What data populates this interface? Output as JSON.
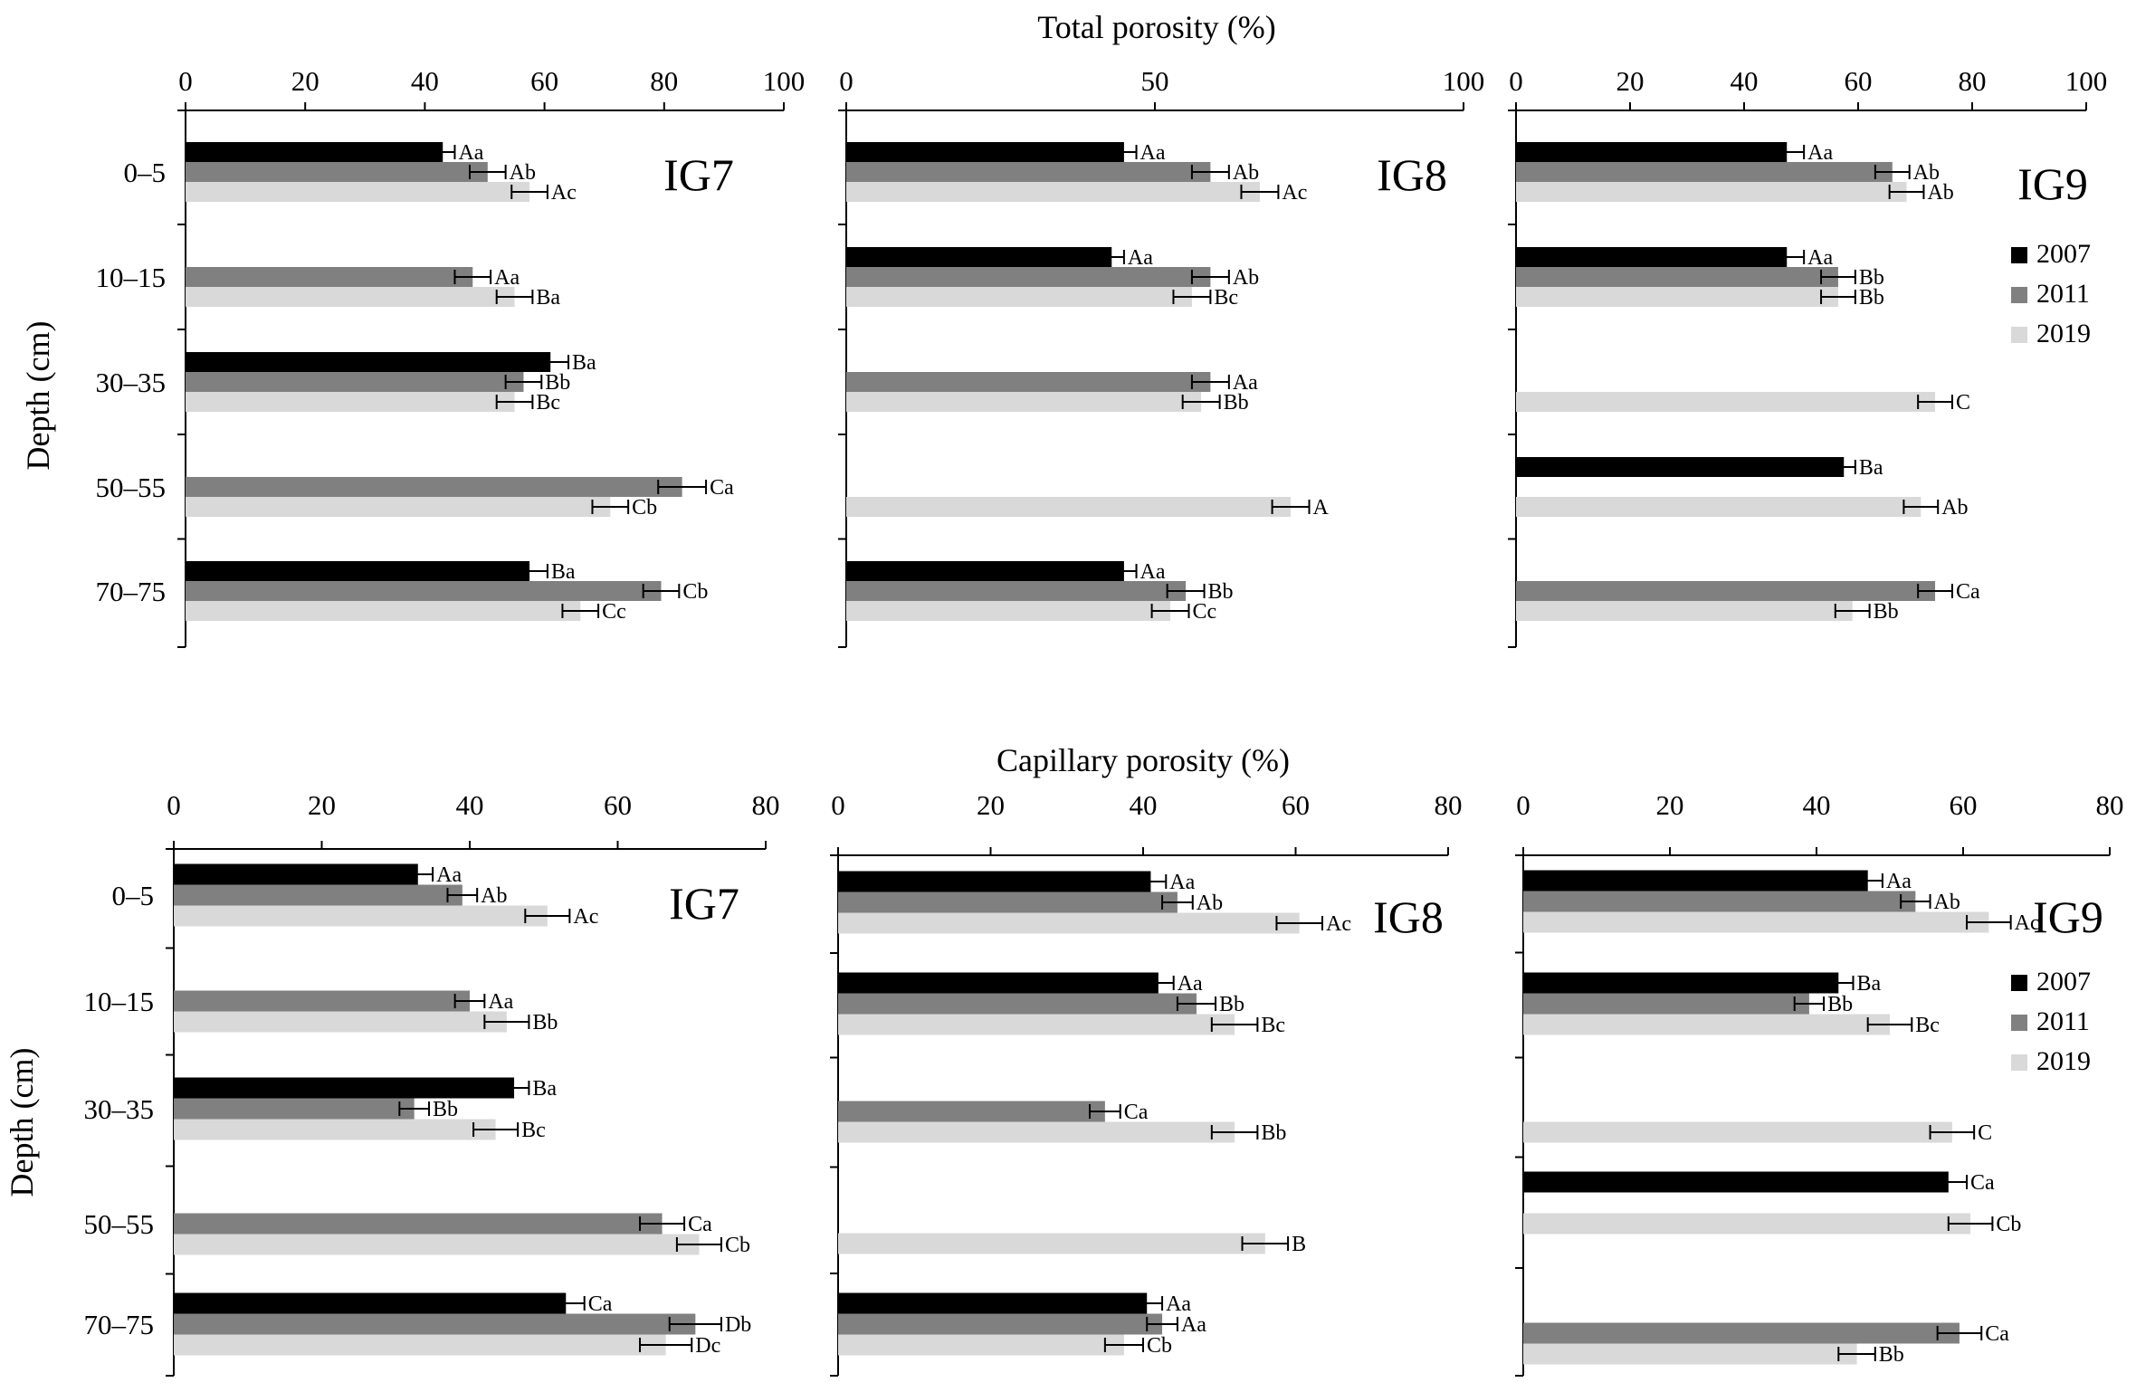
{
  "figure": {
    "top_title": "Total porosity (%)",
    "bottom_title": "Capillary porosity (%)",
    "y_axis_label": "Depth (cm)"
  },
  "colors": {
    "2007": "#000000",
    "2011": "#808080",
    "2019": "#d9d9d9",
    "axis": "#000000"
  },
  "legend": [
    {
      "label": "2007",
      "color": "#000000"
    },
    {
      "label": "2011",
      "color": "#808080"
    },
    {
      "label": "2019",
      "color": "#d9d9d9"
    }
  ],
  "chart_data": [
    {
      "type": "bar",
      "orientation": "horizontal",
      "panel": "IG7",
      "title": "Total porosity (%)",
      "categories": [
        "0–5",
        "10–15",
        "30–35",
        "50–55",
        "70–75"
      ],
      "xlim": [
        0,
        100
      ],
      "xticks": [
        0,
        20,
        40,
        60,
        80,
        100
      ],
      "ylabel": "Depth (cm)",
      "series": [
        {
          "name": "2007",
          "values": [
            43,
            null,
            61,
            null,
            57.5
          ],
          "errors": [
            2,
            null,
            3,
            null,
            3
          ],
          "labels": [
            "Aa",
            "",
            "Ba",
            "",
            "Ba"
          ]
        },
        {
          "name": "2011",
          "values": [
            50.5,
            48,
            56.5,
            83,
            79.5
          ],
          "errors": [
            3,
            3,
            3,
            4,
            3
          ],
          "labels": [
            "Ab",
            "Aa",
            "Bb",
            "Ca",
            "Cb"
          ]
        },
        {
          "name": "2019",
          "values": [
            57.5,
            55,
            55,
            71,
            66
          ],
          "errors": [
            3,
            3,
            3,
            3,
            3
          ],
          "labels": [
            "Ac",
            "Ba",
            "Bc",
            "Cb",
            "Cc"
          ]
        }
      ]
    },
    {
      "type": "bar",
      "orientation": "horizontal",
      "panel": "IG8",
      "title": "Total porosity (%)",
      "categories": [
        "0–5",
        "10–15",
        "30–35",
        "50–55",
        "70–75"
      ],
      "xlim": [
        0,
        100
      ],
      "xticks": [
        0,
        50,
        100
      ],
      "ylabel": "",
      "series": [
        {
          "name": "2007",
          "values": [
            45,
            43,
            null,
            null,
            45
          ],
          "errors": [
            2,
            2,
            null,
            null,
            2
          ],
          "labels": [
            "Aa",
            "Aa",
            "",
            "",
            "Aa"
          ]
        },
        {
          "name": "2011",
          "values": [
            59,
            59,
            59,
            null,
            55
          ],
          "errors": [
            3,
            3,
            3,
            null,
            3
          ],
          "labels": [
            "Ab",
            "Ab",
            "Aa",
            "",
            "Bb"
          ]
        },
        {
          "name": "2019",
          "values": [
            67,
            56,
            57.5,
            72,
            52.5
          ],
          "errors": [
            3,
            3,
            3,
            3,
            3
          ],
          "labels": [
            "Ac",
            "Bc",
            "Bb",
            "A",
            "Cc"
          ]
        }
      ]
    },
    {
      "type": "bar",
      "orientation": "horizontal",
      "panel": "IG9",
      "title": "Total porosity (%)",
      "categories": [
        "0–5",
        "10–15",
        "30–35",
        "50–55",
        "70–75"
      ],
      "xlim": [
        0,
        100
      ],
      "xticks": [
        0,
        20,
        40,
        60,
        80,
        100
      ],
      "ylabel": "",
      "series": [
        {
          "name": "2007",
          "values": [
            47.5,
            47.5,
            null,
            57.5,
            null
          ],
          "errors": [
            3,
            3,
            null,
            2,
            null
          ],
          "labels": [
            "Aa",
            "Aa",
            "",
            "Ba",
            ""
          ]
        },
        {
          "name": "2011",
          "values": [
            66,
            56.5,
            null,
            null,
            73.5
          ],
          "errors": [
            3,
            3,
            null,
            null,
            3
          ],
          "labels": [
            "Ab",
            "Bb",
            "",
            "",
            "Ca"
          ]
        },
        {
          "name": "2019",
          "values": [
            68.5,
            56.5,
            73.5,
            71,
            59
          ],
          "errors": [
            3,
            3,
            3,
            3,
            3
          ],
          "labels": [
            "Ab",
            "Bb",
            "C",
            "Ab",
            "Bb"
          ]
        }
      ]
    },
    {
      "type": "bar",
      "orientation": "horizontal",
      "panel": "IG7",
      "title": "Capillary porosity (%)",
      "categories": [
        "0–5",
        "10–15",
        "30–35",
        "50–55",
        "70–75"
      ],
      "xlim": [
        0,
        80
      ],
      "xticks": [
        0,
        20,
        40,
        60,
        80
      ],
      "ylabel": "Depth (cm)",
      "series": [
        {
          "name": "2007",
          "values": [
            33,
            null,
            46,
            null,
            53
          ],
          "errors": [
            2,
            null,
            2,
            null,
            2.5
          ],
          "labels": [
            "Aa",
            "",
            "Ba",
            "",
            "Ca"
          ]
        },
        {
          "name": "2011",
          "values": [
            39,
            40,
            32.5,
            66,
            70.5
          ],
          "errors": [
            2,
            2,
            2,
            3,
            3.5
          ],
          "labels": [
            "Ab",
            "Aa",
            "Bb",
            "Ca",
            "Db"
          ]
        },
        {
          "name": "2019",
          "values": [
            50.5,
            45,
            43.5,
            71,
            66.5
          ],
          "errors": [
            3,
            3,
            3,
            3,
            3.5
          ],
          "labels": [
            "Ac",
            "Bb",
            "Bc",
            "Cb",
            "Dc"
          ]
        }
      ]
    },
    {
      "type": "bar",
      "orientation": "horizontal",
      "panel": "IG8",
      "title": "Capillary porosity (%)",
      "categories": [
        "0–5",
        "10–15",
        "30–35",
        "50–55",
        "70–75"
      ],
      "xlim": [
        0,
        80
      ],
      "xticks": [
        0,
        20,
        40,
        60,
        80
      ],
      "ylabel": "",
      "series": [
        {
          "name": "2007",
          "values": [
            41,
            42,
            null,
            null,
            40.5
          ],
          "errors": [
            2,
            2,
            null,
            null,
            2
          ],
          "labels": [
            "Aa",
            "Aa",
            "",
            "",
            "Aa"
          ]
        },
        {
          "name": "2011",
          "values": [
            44.5,
            47,
            35,
            null,
            42.5
          ],
          "errors": [
            2,
            2.5,
            2,
            null,
            2
          ],
          "labels": [
            "Ab",
            "Bb",
            "Ca",
            "",
            "Aa"
          ]
        },
        {
          "name": "2019",
          "values": [
            60.5,
            52,
            52,
            56,
            37.5
          ],
          "errors": [
            3,
            3,
            3,
            3,
            2.5
          ],
          "labels": [
            "Ac",
            "Bc",
            "Bb",
            "B",
            "Cb"
          ]
        }
      ]
    },
    {
      "type": "bar",
      "orientation": "horizontal",
      "panel": "IG9",
      "title": "Capillary porosity (%)",
      "categories": [
        "0–5",
        "10–15",
        "30–35",
        "50–55",
        "70–75"
      ],
      "xlim": [
        0,
        80
      ],
      "xticks": [
        0,
        20,
        40,
        60,
        80
      ],
      "ylabel": "",
      "series": [
        {
          "name": "2007",
          "values": [
            47,
            43,
            null,
            58,
            null
          ],
          "errors": [
            2,
            2,
            null,
            2.5,
            null
          ],
          "labels": [
            "Aa",
            "Ba",
            "",
            "Ca",
            ""
          ]
        },
        {
          "name": "2011",
          "values": [
            53.5,
            39,
            null,
            null,
            59.5
          ],
          "errors": [
            2,
            2,
            null,
            null,
            3
          ],
          "labels": [
            "Ab",
            "Bb",
            "",
            "",
            "Ca"
          ]
        },
        {
          "name": "2019",
          "values": [
            63.5,
            50,
            58.5,
            61,
            45.5
          ],
          "errors": [
            3,
            3,
            3,
            3,
            2.5
          ],
          "labels": [
            "Ac",
            "Bc",
            "C",
            "Cb",
            "Bb"
          ]
        }
      ]
    }
  ]
}
